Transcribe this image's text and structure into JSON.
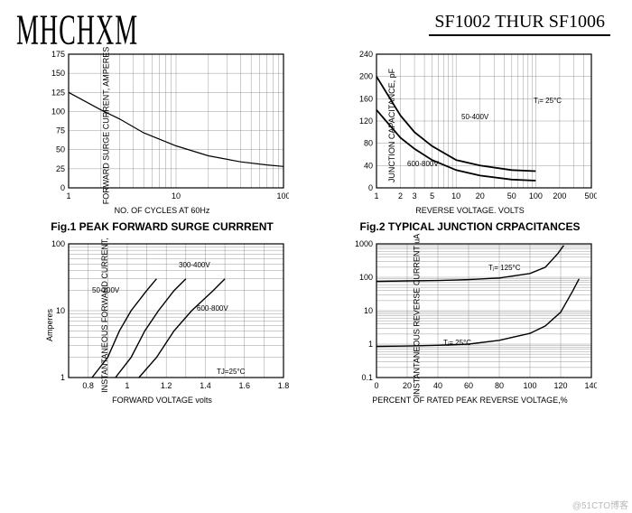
{
  "header": {
    "logo_text": "MHCHXM",
    "part_range": "SF1002 THUR SF1006"
  },
  "colors": {
    "grid": "#808080",
    "border": "#000000",
    "curve": "#000000",
    "bg": "#ffffff",
    "text": "#000000"
  },
  "fig1": {
    "caption": "Fig.1 PEAK FORWARD SURGE CURRRENT",
    "type": "line",
    "ylabel": "FORWARD SURGE CURRENT, AMPERES",
    "xlabel": "NO. OF CYCLES AT 60Hz",
    "xscale": "log",
    "xlim": [
      1,
      100
    ],
    "xticks": [
      1,
      10,
      100
    ],
    "yscale": "linear",
    "ylim": [
      0,
      175
    ],
    "ytick_step": 25,
    "series": [
      {
        "points": [
          [
            1,
            125
          ],
          [
            2,
            102
          ],
          [
            3,
            90
          ],
          [
            5,
            72
          ],
          [
            10,
            55
          ],
          [
            20,
            42
          ],
          [
            40,
            34
          ],
          [
            70,
            30
          ],
          [
            100,
            28
          ]
        ]
      }
    ],
    "line_width": 1.2
  },
  "fig2": {
    "caption": "Fig.2 TYPICAL JUNCTION CRPACITANCES",
    "type": "line",
    "ylabel": "JUNCTION CAPACITANCE, pF",
    "xlabel": "REVERSE VOLTAGE. VOLTS",
    "xscale": "log",
    "xlim": [
      1,
      500
    ],
    "xticks": [
      1,
      2,
      3,
      5,
      10,
      20,
      50,
      100,
      200,
      500
    ],
    "yscale": "linear",
    "ylim": [
      0,
      240
    ],
    "ytick_step": 40,
    "annotations": [
      "Tⱼ= 25°C"
    ],
    "series": [
      {
        "label": "50-400V",
        "points": [
          [
            1,
            200
          ],
          [
            2,
            130
          ],
          [
            3,
            100
          ],
          [
            5,
            75
          ],
          [
            10,
            50
          ],
          [
            20,
            40
          ],
          [
            50,
            32
          ],
          [
            100,
            30
          ]
        ]
      },
      {
        "label": "600-800V",
        "points": [
          [
            1,
            140
          ],
          [
            2,
            90
          ],
          [
            3,
            70
          ],
          [
            5,
            50
          ],
          [
            10,
            32
          ],
          [
            20,
            22
          ],
          [
            50,
            15
          ],
          [
            100,
            13
          ]
        ]
      }
    ],
    "line_width": 1.8
  },
  "fig3": {
    "type": "line",
    "ylabel": "INSTANTANEOUS FORWARD CURRENT,",
    "ylabel2": "Amperes",
    "xlabel": "FORWARD VOLTAGE volts",
    "xscale": "linear",
    "xlim": [
      0.7,
      1.8
    ],
    "xticks": [
      0.8,
      1.0,
      1.2,
      1.4,
      1.6,
      1.8
    ],
    "yscale": "log",
    "ylim": [
      1,
      100
    ],
    "annotations": [
      "TJ=25°C"
    ],
    "series": [
      {
        "label": "50-200V",
        "points": [
          [
            0.82,
            1
          ],
          [
            0.9,
            2
          ],
          [
            0.96,
            5
          ],
          [
            1.02,
            10
          ],
          [
            1.1,
            20
          ],
          [
            1.15,
            30
          ]
        ]
      },
      {
        "label": "300-400V",
        "points": [
          [
            0.94,
            1
          ],
          [
            1.02,
            2
          ],
          [
            1.09,
            5
          ],
          [
            1.16,
            10
          ],
          [
            1.24,
            20
          ],
          [
            1.3,
            30
          ]
        ]
      },
      {
        "label": "600-800V",
        "points": [
          [
            1.06,
            1
          ],
          [
            1.15,
            2
          ],
          [
            1.24,
            5
          ],
          [
            1.33,
            10
          ],
          [
            1.44,
            20
          ],
          [
            1.5,
            30
          ]
        ]
      }
    ],
    "line_width": 1.4
  },
  "fig4": {
    "type": "line",
    "ylabel": "INSTANTANEOUS REVERSE CURRENT uA",
    "xlabel": "PERCENT OF RATED PEAK REVERSE VOLTAGE,%",
    "xscale": "linear",
    "xlim": [
      0,
      140
    ],
    "xtick_step": 20,
    "yscale": "log",
    "ylim": [
      0.1,
      1000
    ],
    "series": [
      {
        "label": "Tⱼ= 125°C",
        "points": [
          [
            0,
            75
          ],
          [
            20,
            78
          ],
          [
            40,
            80
          ],
          [
            60,
            85
          ],
          [
            80,
            95
          ],
          [
            100,
            130
          ],
          [
            110,
            200
          ],
          [
            118,
            500
          ],
          [
            122,
            900
          ]
        ]
      },
      {
        "label": "Tⱼ= 25°C",
        "points": [
          [
            0,
            0.85
          ],
          [
            20,
            0.88
          ],
          [
            40,
            0.92
          ],
          [
            60,
            1.0
          ],
          [
            80,
            1.3
          ],
          [
            100,
            2.1
          ],
          [
            110,
            3.5
          ],
          [
            120,
            9
          ],
          [
            128,
            40
          ],
          [
            132,
            90
          ]
        ]
      }
    ],
    "line_width": 1.4
  },
  "watermark": "@51CTO博客"
}
